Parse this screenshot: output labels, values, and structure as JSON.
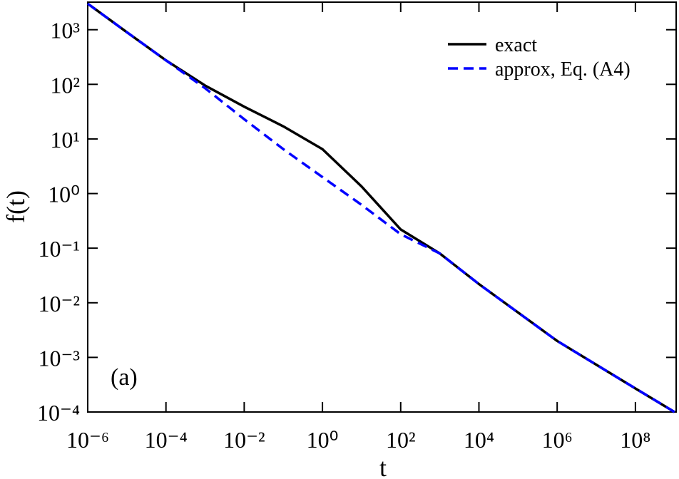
{
  "chart_data": {
    "type": "line",
    "x_label": "t",
    "y_label": "f(t)",
    "annotation": "(a)",
    "log_x": true,
    "log_y": true,
    "legend": "upper right",
    "x": [
      1e-06,
      1e-05,
      0.0001,
      0.001,
      0.01,
      0.1,
      1,
      10,
      100,
      1000,
      10000,
      1000000,
      100000000,
      1000000000
    ],
    "series": [
      {
        "name": "exact",
        "color": "#000000",
        "dash": false,
        "values": [
          3000,
          900,
          275,
          95,
          39,
          17,
          6.5,
          1.35,
          0.22,
          0.08,
          0.022,
          0.002,
          0.00027,
          0.0001
        ]
      },
      {
        "name": "approx, Eq. (A4)",
        "color": "#0000ff",
        "dash": true,
        "values": [
          3000,
          900,
          275,
          85,
          23,
          6.5,
          2.0,
          0.62,
          0.18,
          0.08,
          0.022,
          0.002,
          0.00027,
          0.0001
        ]
      }
    ],
    "xlim": [
      1e-06,
      1100000000
    ],
    "ylim": [
      0.0001,
      3200
    ],
    "xticks": [
      {
        "value": 1e-06,
        "label": "10⁻⁶"
      },
      {
        "value": 0.0001,
        "label": "10⁻⁴"
      },
      {
        "value": 0.01,
        "label": "10⁻²"
      },
      {
        "value": 1,
        "label": "10⁰"
      },
      {
        "value": 100,
        "label": "10²"
      },
      {
        "value": 10000,
        "label": "10⁴"
      },
      {
        "value": 1000000,
        "label": "10⁶"
      },
      {
        "value": 100000000,
        "label": "10⁸"
      }
    ],
    "yticks": [
      {
        "value": 0.0001,
        "label": "10⁻⁴"
      },
      {
        "value": 0.001,
        "label": "10⁻³"
      },
      {
        "value": 0.01,
        "label": "10⁻²"
      },
      {
        "value": 0.1,
        "label": "10⁻¹"
      },
      {
        "value": 1,
        "label": "10⁰"
      },
      {
        "value": 10,
        "label": "10¹"
      },
      {
        "value": 100,
        "label": "10²"
      },
      {
        "value": 1000,
        "label": "10³"
      }
    ]
  }
}
